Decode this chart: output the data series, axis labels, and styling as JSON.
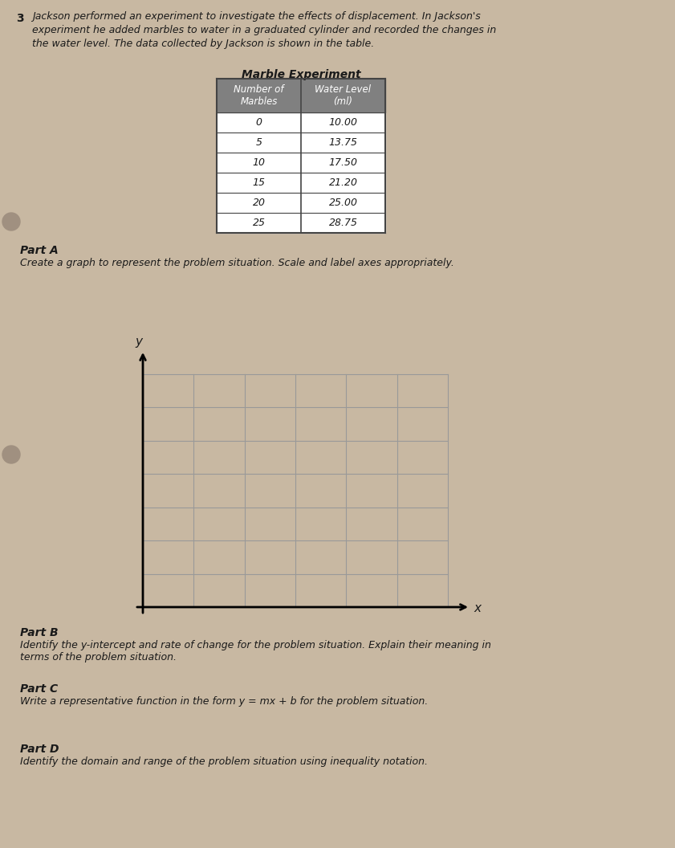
{
  "page_bg": "#c8b8a2",
  "title_text_line1": "Jackson performed an experiment to investigate the effects of displacement. In Jackson's",
  "title_text_line2": "experiment he added marbles to water in a graduated cylinder and recorded the changes in",
  "title_text_line3": "the water level. The data collected by Jackson is shown in the table.",
  "table_title": "Marble Experiment",
  "table_headers_col1": "Number of\nMarbles",
  "table_headers_col2": "Water Level\n(ml)",
  "table_data": [
    [
      "0",
      "10.00"
    ],
    [
      "5",
      "13.75"
    ],
    [
      "10",
      "17.50"
    ],
    [
      "15",
      "21.20"
    ],
    [
      "20",
      "25.00"
    ],
    [
      "25",
      "28.75"
    ]
  ],
  "part_a_label": "Part A",
  "part_a_text": "Create a graph to represent the problem situation. Scale and label axes appropriately.",
  "part_b_label": "Part B",
  "part_b_text_line1": "Identify the y-intercept and rate of change for the problem situation. Explain their meaning in",
  "part_b_text_line2": "terms of the problem situation.",
  "part_c_label": "Part C",
  "part_c_text": "Write a representative function in the form y = mx + b for the problem situation.",
  "part_d_label": "Part D",
  "part_d_text": "Identify the domain and range of the problem situation using inequality notation.",
  "grid_cols": 6,
  "grid_rows": 7,
  "axis_label_x": "x",
  "axis_label_y": "y",
  "question_number": "3",
  "header_bg": "#808080",
  "header_text_color": "#ffffff",
  "table_border_color": "#444444",
  "grid_line_color": "#999999",
  "text_color": "#1a1a1a",
  "hole_color": "#a09080"
}
